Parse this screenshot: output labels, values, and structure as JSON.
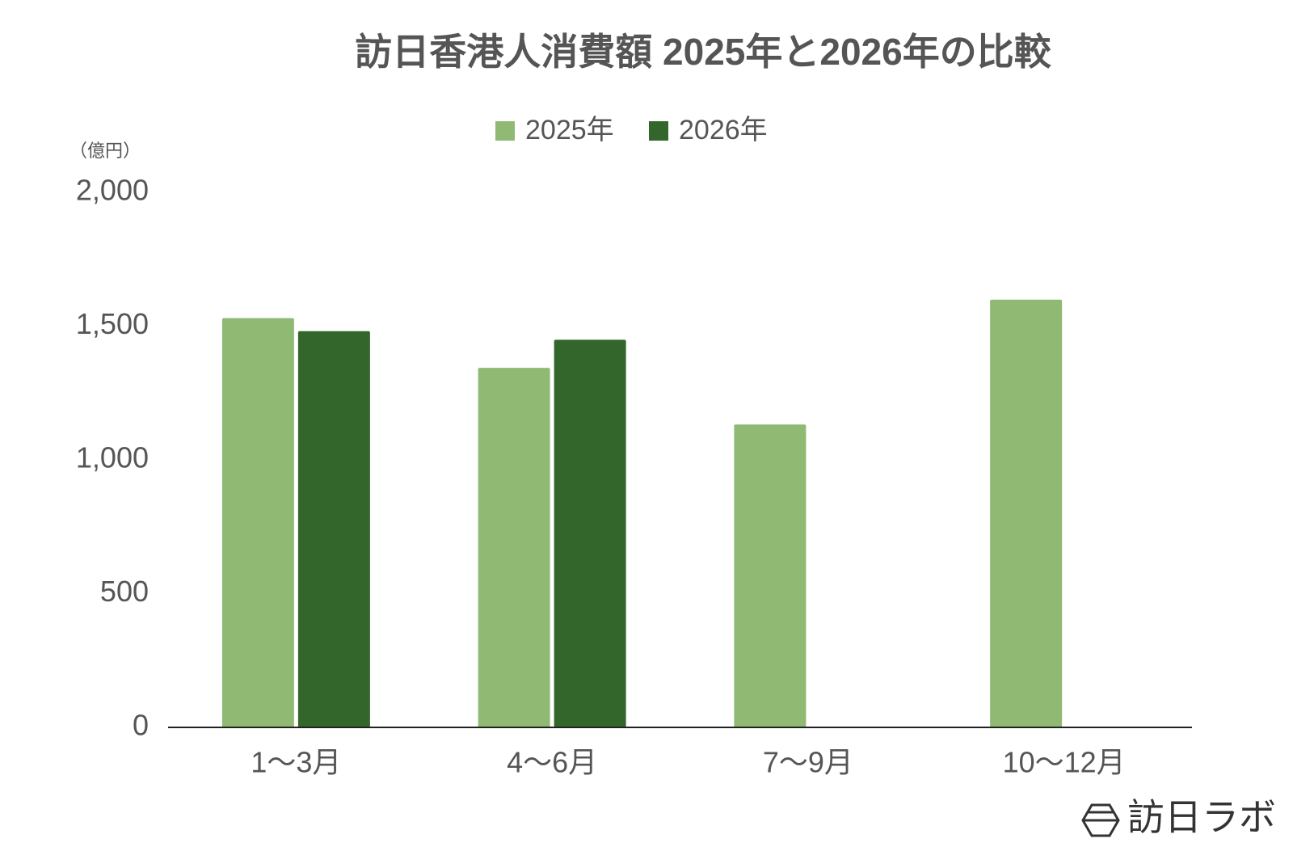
{
  "chart_data": {
    "type": "bar",
    "title": "訪日香港人消費額 2025年と2026年の比較",
    "y_label": "（億円）",
    "categories": [
      "1〜3月",
      "4〜6月",
      "7〜9月",
      "10〜12月"
    ],
    "series": [
      {
        "name": "2025年",
        "color": "#90b974",
        "values": [
          1530,
          1344,
          1132,
          1599
        ]
      },
      {
        "name": "2026年",
        "color": "#33662b",
        "values": [
          1481,
          1449,
          null,
          null
        ]
      }
    ],
    "ylim": [
      0,
      2000
    ],
    "yticks": [
      0,
      500,
      {
        "value": 1000,
        "label": "1,000"
      },
      {
        "value": 1500,
        "label": "1,500"
      },
      {
        "value": 2000,
        "label": "2,000"
      }
    ],
    "grid": false,
    "legend": "top"
  },
  "watermark": "訪日ラボ"
}
